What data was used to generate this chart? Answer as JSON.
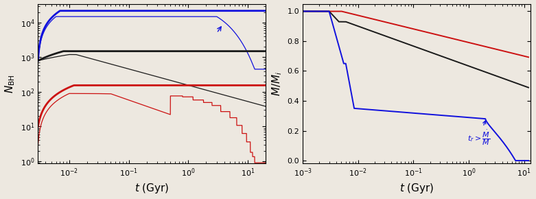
{
  "fig_width": 7.81,
  "fig_height": 2.9,
  "dpi": 100,
  "bg_color": "#ede8e0",
  "left_xlim": [
    0.003,
    20
  ],
  "left_ylim": [
    0.85,
    35000
  ],
  "left_xlabel": "$t$ (Gyr)",
  "left_ylabel": "$N_{\\rm BH}$",
  "right_xlim": [
    0.001,
    13
  ],
  "right_ylim": [
    -0.02,
    1.05
  ],
  "right_xlabel": "$t$ (Gyr)",
  "right_ylabel": "$M/M_i$",
  "blue_color": "#1010dd",
  "black_color": "#1a1a1a",
  "red_color": "#cc1111",
  "lw_thick": 2.0,
  "lw_thin": 0.9
}
